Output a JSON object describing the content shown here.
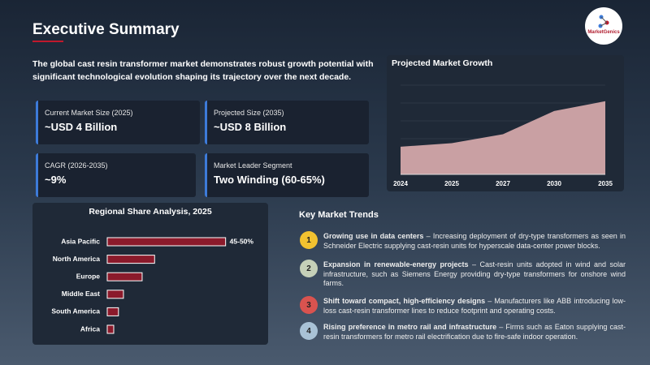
{
  "header": {
    "title": "Executive Summary",
    "logo": "MarketGenics"
  },
  "intro": "The global cast resin transformer market demonstrates robust growth potential with significant technological evolution shaping its trajectory over the next decade.",
  "kpis": [
    {
      "label": "Current Market Size (2025)",
      "value": "~USD 4 Billion"
    },
    {
      "label": "Projected Size (2035)",
      "value": "~USD 8 Billion"
    },
    {
      "label": "CAGR (2026-2035)",
      "value": "~9%"
    },
    {
      "label": "Market Leader Segment",
      "value": "Two Winding (60-65%)"
    }
  ],
  "chart_data": [
    {
      "type": "area",
      "title": "Projected Market Growth",
      "categories": [
        "2024",
        "2025",
        "2027",
        "2030",
        "2035"
      ],
      "values": [
        3.1,
        3.5,
        4.5,
        7.1,
        8.2
      ],
      "ylim": [
        0,
        10
      ],
      "color": "#c9a0a3",
      "grid": true
    },
    {
      "type": "hbar",
      "title": "Regional Share Analysis, 2025",
      "categories": [
        "Asia Pacific",
        "North America",
        "Europe",
        "Middle East",
        "South America",
        "Africa"
      ],
      "values": [
        47.5,
        19,
        14,
        6.5,
        4.5,
        2.6
      ],
      "value_labels": [
        "45-50%",
        null,
        null,
        null,
        null,
        null
      ],
      "xlim": [
        0,
        60
      ],
      "color": "#8b1a2b"
    }
  ],
  "trends": {
    "title": "Key Market Trends",
    "items": [
      {
        "number": 1,
        "heading": "Growing use in data centers",
        "text": " – Increasing deployment of dry-type transformers as seen in Schneider Electric supplying cast-resin units for hyperscale data-center power blocks."
      },
      {
        "number": 2,
        "heading": "Expansion in renewable-energy projects",
        "text": " – Cast-resin units adopted in wind and solar infrastructure, such as Siemens Energy providing dry-type transformers for onshore wind farms."
      },
      {
        "number": 3,
        "heading": "Shift toward compact, high-efficiency designs",
        "text": " – Manufacturers like ABB introducing low-loss cast-resin transformer lines to reduce footprint and operating costs."
      },
      {
        "number": 4,
        "heading": "Rising preference in metro rail and infrastructure",
        "text": " – Firms such as Eaton supplying cast-resin transformers for metro rail electrification due to fire-safe indoor operation."
      }
    ]
  }
}
